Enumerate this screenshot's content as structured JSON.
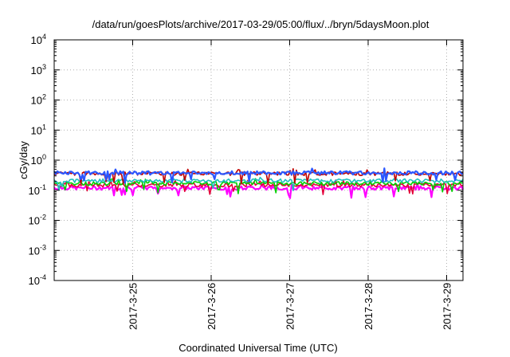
{
  "chart_data": {
    "type": "line",
    "title": "/data/run/goesPlots/archive/2017-03-29/05:00/flux/../bryn/5daysMoon.plot",
    "xlabel": "Coordinated Universal Time (UTC)",
    "ylabel": "cGy/day",
    "yscale": "log",
    "ylim": [
      0.0001,
      10000
    ],
    "xlim": [
      "2017-03-24T00:00",
      "2017-03-29T05:00"
    ],
    "grid": true,
    "x_ticks": [
      "2017-3-25",
      "2017-3-26",
      "2017-3-27",
      "2017-3-28",
      "2017-3-29"
    ],
    "y_ticks": [
      {
        "base": "10",
        "exp": "-4"
      },
      {
        "base": "10",
        "exp": "-3"
      },
      {
        "base": "10",
        "exp": "-2"
      },
      {
        "base": "10",
        "exp": "-1"
      },
      {
        "base": "10",
        "exp": "0"
      },
      {
        "base": "10",
        "exp": "1"
      },
      {
        "base": "10",
        "exp": "2"
      },
      {
        "base": "10",
        "exp": "3"
      },
      {
        "base": "10",
        "exp": "4"
      }
    ],
    "series": [
      {
        "color": "#ff00ff",
        "level": 0.12
      },
      {
        "color": "#e4003a",
        "level": 0.15
      },
      {
        "color": "#00d000",
        "level": 0.17
      },
      {
        "color": "#1fbfbf",
        "level": 0.21
      },
      {
        "color": "#c00000",
        "level": 0.36
      },
      {
        "color": "#2b57ff",
        "level": 0.38
      }
    ]
  }
}
